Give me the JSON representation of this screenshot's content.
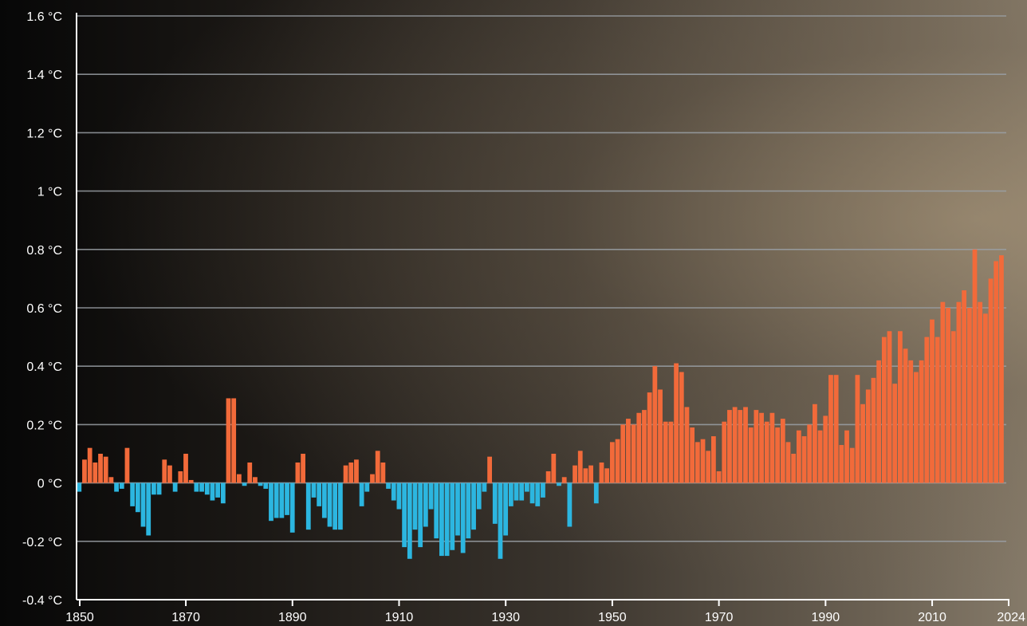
{
  "chart_data": {
    "type": "bar",
    "title": "",
    "xlabel": "",
    "ylabel": "",
    "ylim": [
      -0.4,
      1.6
    ],
    "y_ticks": [
      -0.4,
      -0.2,
      0,
      0.2,
      0.4,
      0.6,
      0.8,
      1,
      1.2,
      1.4,
      1.6
    ],
    "y_tick_labels": [
      "-0.4 °C",
      "-0.2 °C",
      "0 °C",
      "0.2 °C",
      "0.4 °C",
      "0.6 °C",
      "0.8 °C",
      "1 °C",
      "1.2 °C",
      "1.4 °C",
      "1.6 °C"
    ],
    "x_tick_labels": [
      "1850",
      "1870",
      "1890",
      "1910",
      "1930",
      "1950",
      "1970",
      "1990",
      "2010",
      "2024"
    ],
    "grid": true,
    "colors": {
      "positive": "#f26a3a",
      "negative": "#2cb6e0",
      "grid": "#9aa0a6",
      "axis": "#ffffff"
    },
    "x_start": 1850,
    "x_end": 2024,
    "values": [
      -0.03,
      0.08,
      0.12,
      0.07,
      0.1,
      0.09,
      0.02,
      -0.03,
      -0.02,
      0.12,
      -0.08,
      -0.1,
      -0.15,
      -0.18,
      -0.04,
      -0.04,
      0.08,
      0.06,
      -0.03,
      0.04,
      0.1,
      0.01,
      -0.03,
      -0.03,
      -0.04,
      -0.06,
      -0.05,
      -0.07,
      0.29,
      0.29,
      0.03,
      -0.01,
      0.07,
      0.02,
      -0.01,
      -0.02,
      -0.13,
      -0.12,
      -0.12,
      -0.11,
      -0.17,
      0.07,
      0.1,
      -0.16,
      -0.05,
      -0.08,
      -0.12,
      -0.15,
      -0.16,
      -0.16,
      0.06,
      0.07,
      0.08,
      -0.08,
      -0.03,
      0.03,
      0.11,
      0.07,
      -0.02,
      -0.06,
      -0.09,
      -0.22,
      -0.26,
      -0.16,
      -0.22,
      -0.15,
      -0.09,
      -0.19,
      -0.25,
      -0.25,
      -0.23,
      -0.18,
      -0.24,
      -0.19,
      -0.16,
      -0.09,
      -0.03,
      0.09,
      -0.14,
      -0.26,
      -0.18,
      -0.08,
      -0.06,
      -0.06,
      -0.03,
      -0.07,
      -0.08,
      -0.05,
      0.04,
      0.1,
      -0.01,
      0.02,
      -0.15,
      0.06,
      0.11,
      0.05,
      0.06,
      -0.07,
      0.07,
      0.05,
      0.14,
      0.15,
      0.2,
      0.22,
      0.2,
      0.24,
      0.25,
      0.31,
      0.4,
      0.32,
      0.21,
      0.21,
      0.41,
      0.38,
      0.26,
      0.19,
      0.14,
      0.15,
      0.11,
      0.16,
      0.04,
      0.21,
      0.25,
      0.26,
      0.25,
      0.26,
      0.19,
      0.25,
      0.24,
      0.21,
      0.24,
      0.19,
      0.22,
      0.14,
      0.1,
      0.18,
      0.16,
      0.2,
      0.27,
      0.18,
      0.23,
      0.37,
      0.37,
      0.13,
      0.18,
      0.12,
      0.37,
      0.27,
      0.32,
      0.36,
      0.42,
      0.5,
      0.52,
      0.34,
      0.52,
      0.46,
      0.42,
      0.38,
      0.42,
      0.5,
      0.56,
      0.5,
      0.62,
      0.6,
      0.52,
      0.62,
      0.66,
      0.6,
      0.8,
      0.62,
      0.58,
      0.7,
      0.76,
      0.78
    ]
  }
}
